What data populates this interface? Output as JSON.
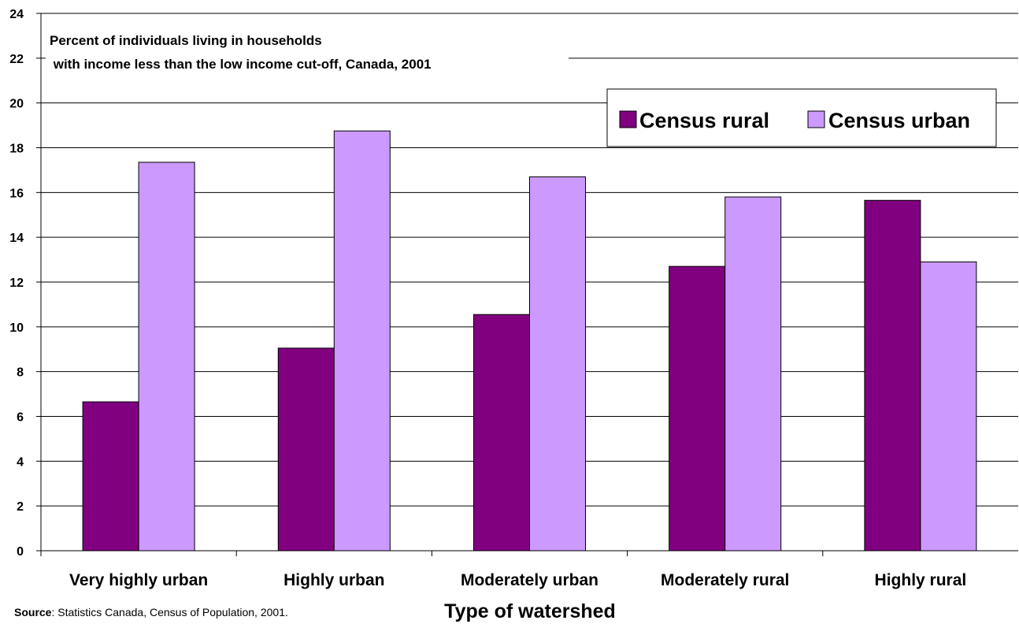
{
  "chart_data": {
    "type": "bar",
    "title_lines": [
      "Percent of individuals living in households",
      " with income less than the low income cut-off, Canada, 2001"
    ],
    "xlabel": "Type of watershed",
    "ylabel": "",
    "ylim": [
      0,
      24
    ],
    "yticks": [
      "0",
      "2",
      "4",
      "6",
      "8",
      "10",
      "12",
      "14",
      "16",
      "18",
      "20",
      "22",
      "24"
    ],
    "grid": true,
    "legend_position": "top-right",
    "categories": [
      "Very highly urban",
      "Highly urban",
      "Moderately urban",
      "Moderately rural",
      "Highly rural"
    ],
    "series": [
      {
        "name": "Census rural",
        "color": "#800080",
        "values": [
          6.65,
          9.05,
          10.55,
          12.7,
          15.65
        ]
      },
      {
        "name": "Census urban",
        "color": "#cc99ff",
        "values": [
          17.35,
          18.75,
          16.7,
          15.8,
          12.9
        ]
      }
    ]
  },
  "source": {
    "label": "Source",
    "text": ": Statistics Canada, Census of Population, 2001."
  }
}
